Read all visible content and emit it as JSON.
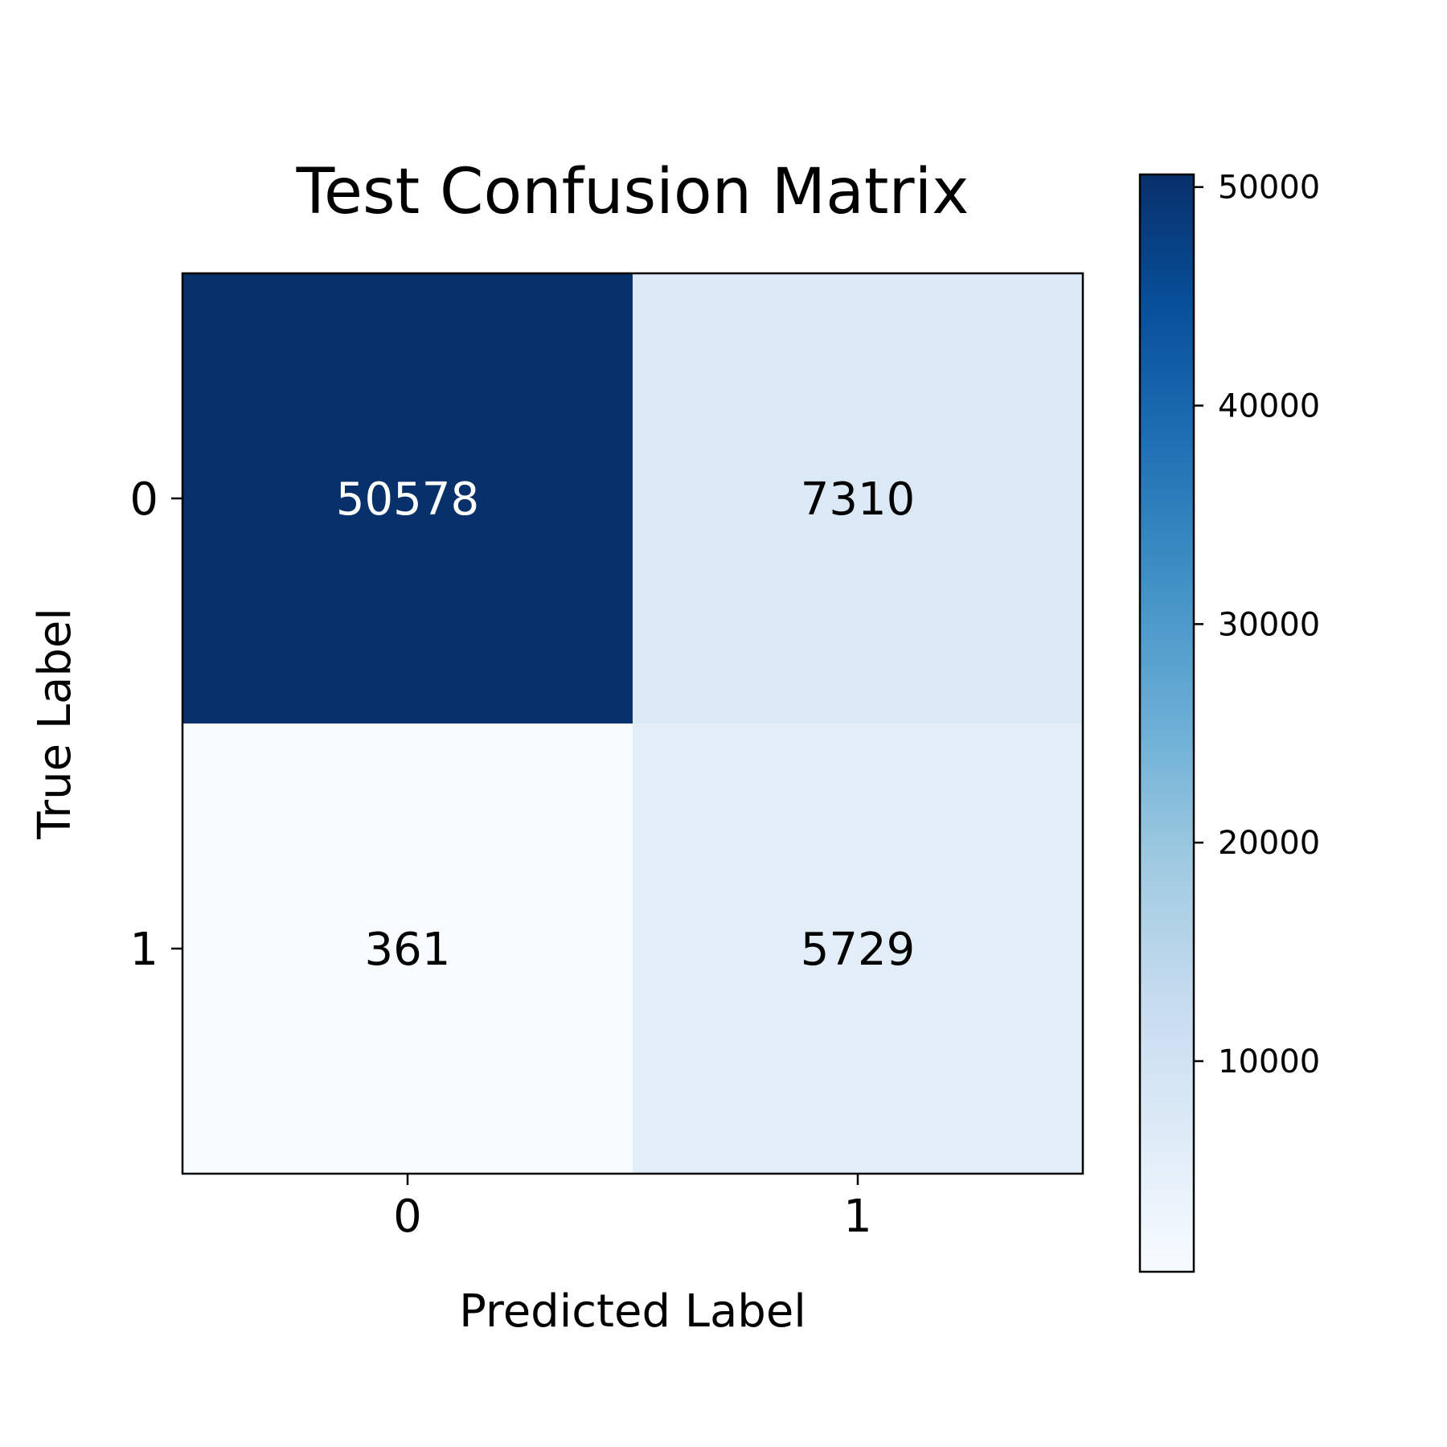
{
  "chart_data": {
    "type": "heatmap",
    "title": "Test Confusion Matrix",
    "xlabel": "Predicted Label",
    "ylabel": "True Label",
    "x_categories": [
      "0",
      "1"
    ],
    "y_categories": [
      "0",
      "1"
    ],
    "values": [
      [
        50578,
        7310
      ],
      [
        361,
        5729
      ]
    ],
    "colormap": "Blues",
    "colorbar": {
      "min": 361,
      "max": 50578,
      "ticks": [
        10000,
        20000,
        30000,
        40000,
        50000
      ],
      "tick_labels": [
        "10000",
        "20000",
        "30000",
        "40000",
        "50000"
      ]
    },
    "text_colors": {
      "dark_cell": "#ffffff",
      "light_cell": "#000000"
    },
    "grid": false,
    "legend": "none"
  }
}
